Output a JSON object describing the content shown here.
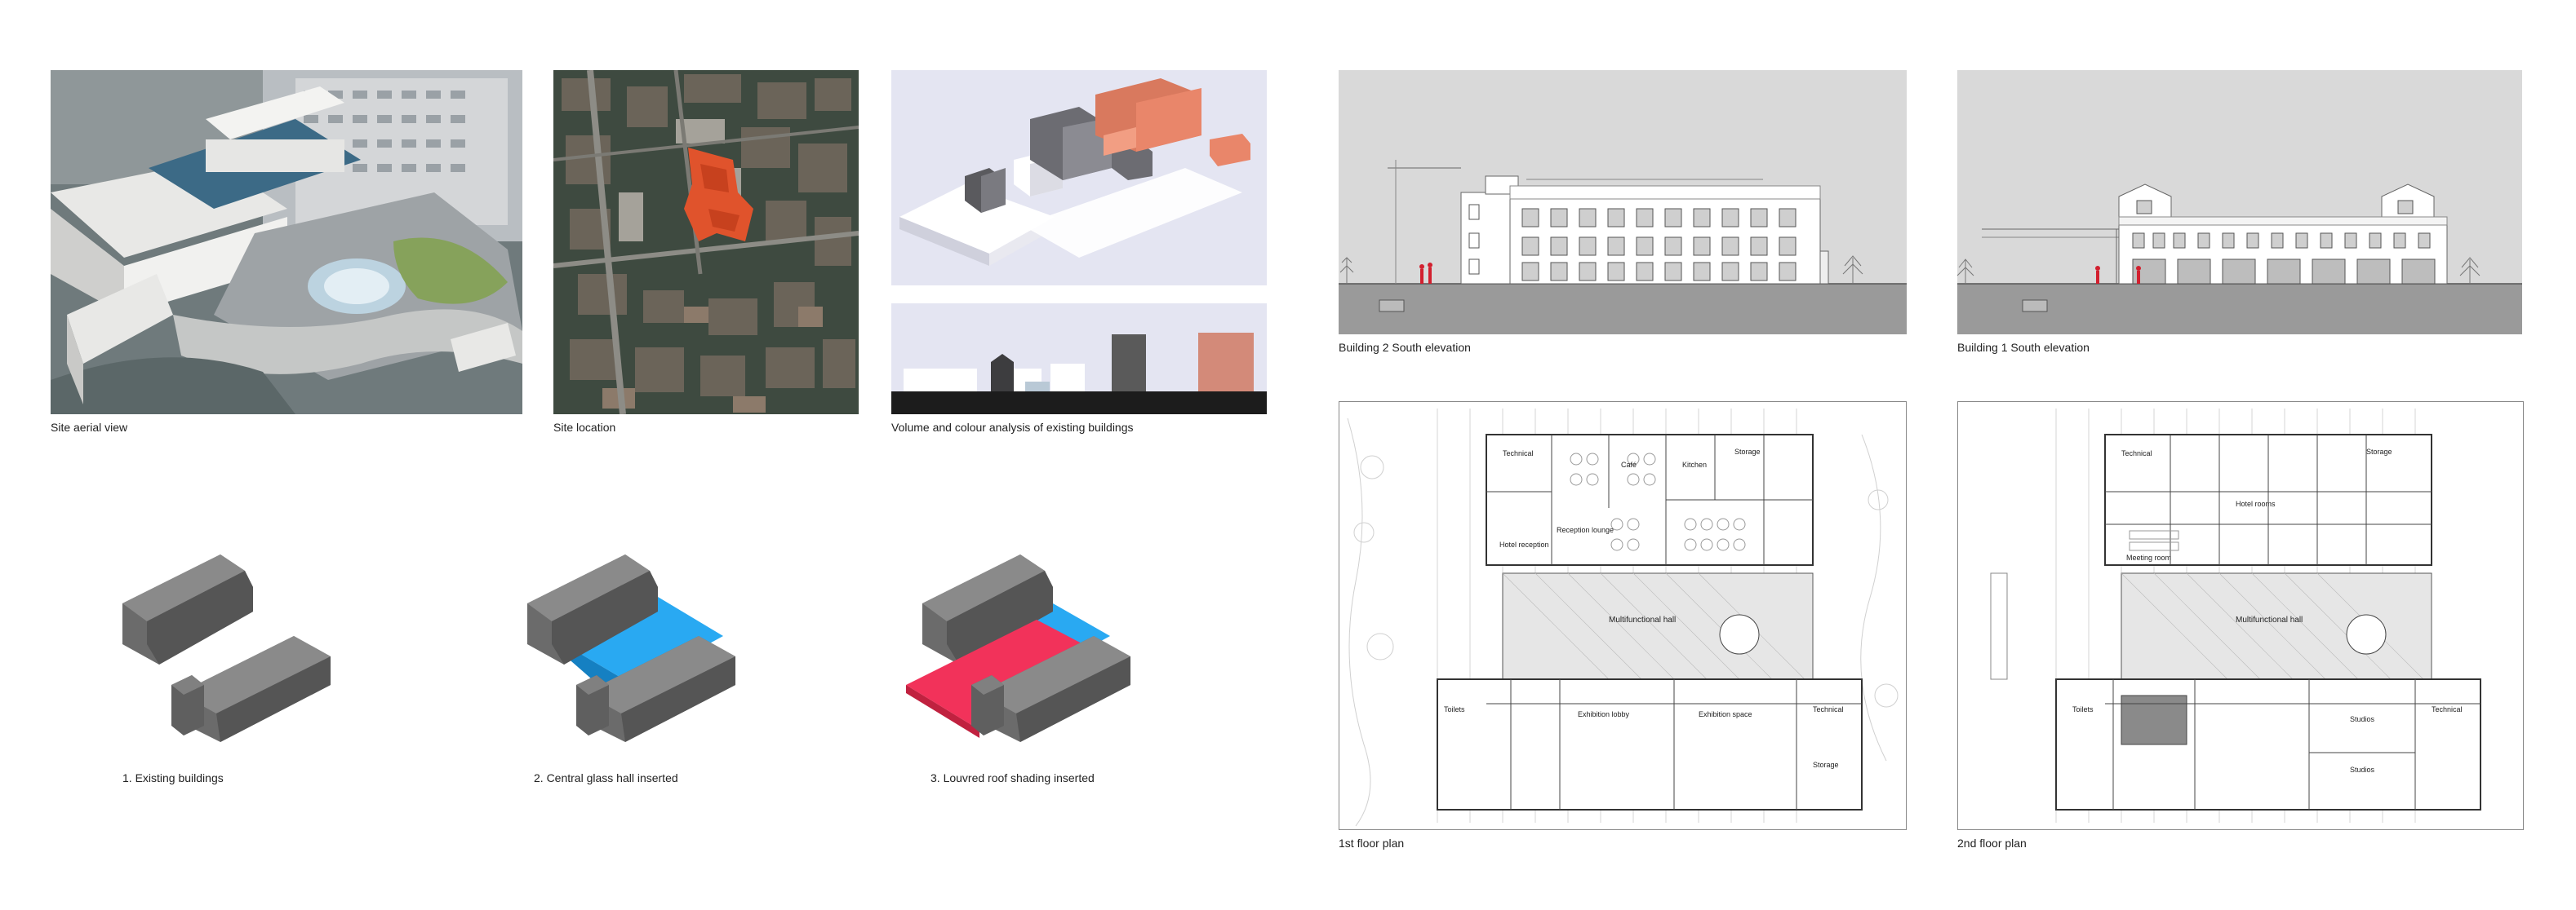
{
  "captions": {
    "aerial": "Site aerial view",
    "location": "Site location",
    "volume": "Volume and colour analysis of existing buildings",
    "elev2": "Building 2 South elevation",
    "elev1": "Building 1 South elevation",
    "step1": "1. Existing buildings",
    "step2": "2. Central glass hall inserted",
    "step3": "3. Louvred roof shading inserted",
    "plan1": "1st floor plan",
    "plan2": "2nd floor plan"
  },
  "plan1_labels": {
    "hall": "Multifunctional hall",
    "cafe": "Café",
    "reception": "Reception lounge",
    "hotel_reception": "Hotel reception",
    "technical": "Technical",
    "storage": "Storage",
    "kitchen": "Kitchen",
    "toilets": "Toilets",
    "exhibition_1": "Exhibition lobby",
    "exhibition_2": "Exhibition space",
    "technical_2": "Technical",
    "storage_2": "Storage"
  },
  "plan2_labels": {
    "hall": "Multifunctional hall",
    "technical": "Technical",
    "storage": "Storage",
    "hotel_rooms": "Hotel rooms",
    "meeting": "Meeting room",
    "toilets": "Toilets",
    "studios_1": "Studios",
    "studios_2": "Studios",
    "technical_2": "Technical"
  },
  "colors": {
    "glass_hall": "#29a9f2",
    "louvred_roof": "#f2325a",
    "existing": "#6b6b6b",
    "site_highlight": "#e0532c",
    "volume_orange": "#e9866a",
    "volume_bg": "#e4e5f2"
  }
}
